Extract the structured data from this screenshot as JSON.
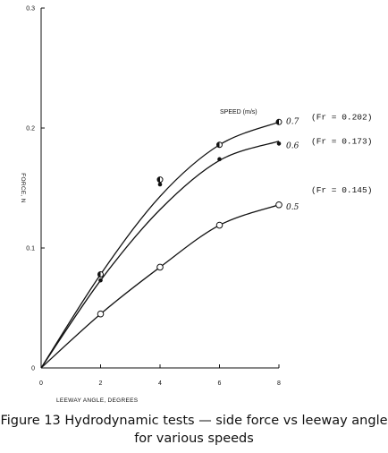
{
  "caption": {
    "line1": "Figure 13 Hydrodynamic tests — side force vs leeway angle",
    "line2": "for various speeds"
  },
  "chart_data": {
    "type": "line",
    "xlabel": "LEEWAY ANGLE, DEGREES",
    "ylabel": "FORCE, N",
    "xlim": [
      0,
      8
    ],
    "ylim": [
      0,
      0.3
    ],
    "xticks": [
      0,
      2,
      4,
      6,
      8
    ],
    "yticks": [
      0,
      0.1,
      0.2,
      0.3
    ],
    "ytick_labels": [
      "0",
      "0.1",
      "0.2",
      "0.3"
    ],
    "legend_title": "SPEED (m/s)",
    "grid": false,
    "series": [
      {
        "name": "0.7",
        "froude": "(Fr = 0.202)",
        "marker": "half-open-circle",
        "points": [
          [
            2,
            0.078
          ],
          [
            4,
            0.157
          ],
          [
            6,
            0.186
          ],
          [
            8,
            0.205
          ]
        ],
        "curve": [
          [
            0,
            0
          ],
          [
            2,
            0.078
          ],
          [
            4,
            0.143
          ],
          [
            6,
            0.186
          ],
          [
            8,
            0.205
          ]
        ]
      },
      {
        "name": "0.6",
        "froude": "(Fr = 0.173)",
        "marker": "filled-circle",
        "points": [
          [
            2,
            0.073
          ],
          [
            4,
            0.153
          ],
          [
            6,
            0.174
          ],
          [
            8,
            0.187
          ]
        ],
        "curve": [
          [
            0,
            0
          ],
          [
            2,
            0.073
          ],
          [
            4,
            0.132
          ],
          [
            6,
            0.173
          ],
          [
            8,
            0.189
          ]
        ]
      },
      {
        "name": "0.5",
        "froude": "(Fr = 0.145)",
        "marker": "open-circle",
        "points": [
          [
            2,
            0.045
          ],
          [
            4,
            0.084
          ],
          [
            6,
            0.119
          ],
          [
            8,
            0.136
          ]
        ],
        "curve": [
          [
            0,
            0
          ],
          [
            2,
            0.045
          ],
          [
            4,
            0.084
          ],
          [
            6,
            0.119
          ],
          [
            8,
            0.136
          ]
        ]
      }
    ]
  }
}
